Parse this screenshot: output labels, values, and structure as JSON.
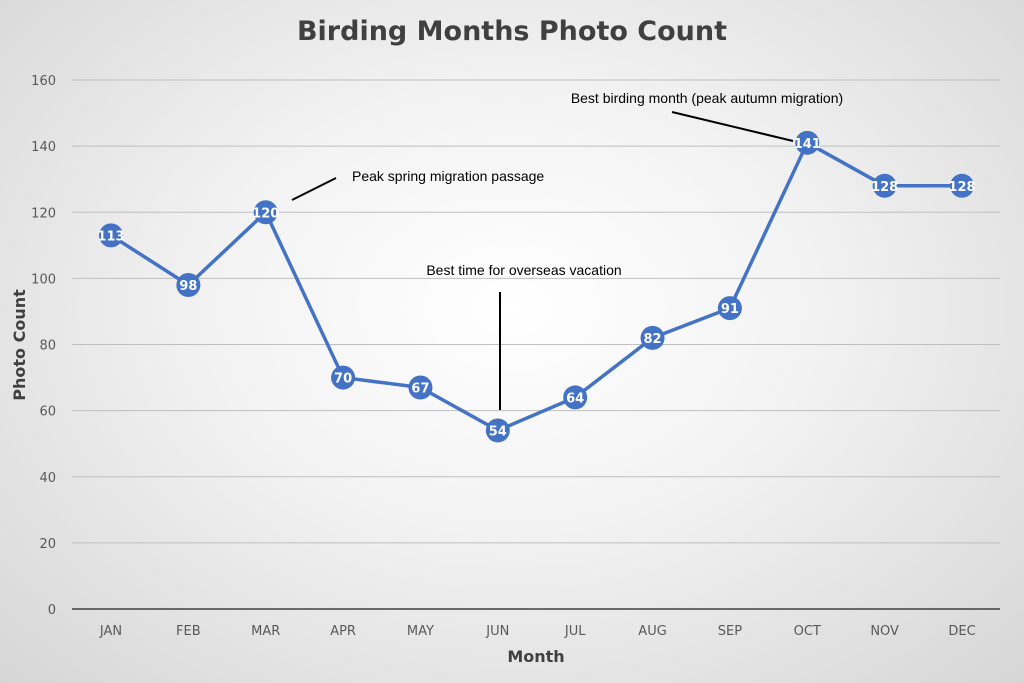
{
  "chart_data": {
    "type": "line",
    "title": "Birding Months Photo Count",
    "xlabel": "Month",
    "ylabel": "Photo Count",
    "categories": [
      "JAN",
      "FEB",
      "MAR",
      "APR",
      "MAY",
      "JUN",
      "JUL",
      "AUG",
      "SEP",
      "OCT",
      "NOV",
      "DEC"
    ],
    "values": [
      113,
      98,
      120,
      70,
      67,
      54,
      64,
      82,
      91,
      141,
      128,
      128
    ],
    "ylim": [
      0,
      160
    ],
    "yticks": [
      0,
      20,
      40,
      60,
      80,
      100,
      120,
      140,
      160
    ],
    "grid": true,
    "data_labels": true,
    "line_color": "#4472C4",
    "annotations": [
      {
        "category": "MAR",
        "text": "Peak spring migration passage"
      },
      {
        "category": "JUN",
        "text": "Best time for overseas vacation"
      },
      {
        "category": "OCT",
        "text": "Best birding month (peak autumn migration)"
      }
    ]
  }
}
